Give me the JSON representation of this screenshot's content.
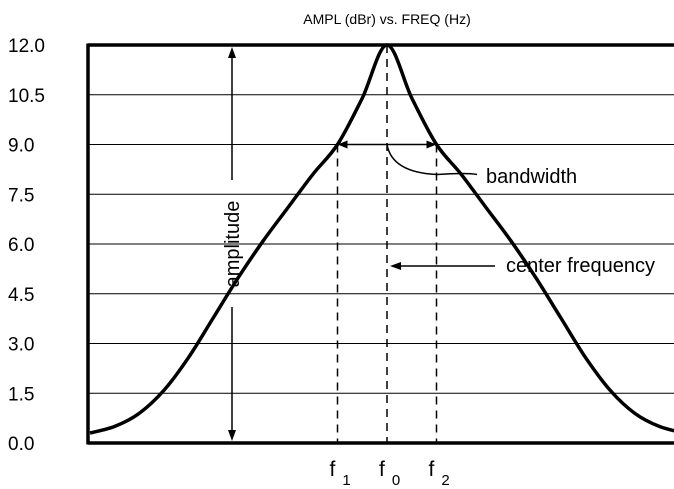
{
  "chart_data": {
    "type": "line",
    "title": "AMPL (dBr) vs. FREQ (Hz)",
    "xlabel": "",
    "ylabel": "",
    "ylim": [
      0,
      12
    ],
    "yticks": [
      "12.0",
      "10.5",
      "9.0",
      "7.5",
      "6.0",
      "4.5",
      "3.0",
      "1.5",
      "0.0"
    ],
    "grid": true,
    "x_markers": [
      {
        "base": "f",
        "sub": "1",
        "x": -1
      },
      {
        "base": "f",
        "sub": "0",
        "x": 0
      },
      {
        "base": "f",
        "sub": "2",
        "x": 1
      }
    ],
    "series": [
      {
        "x": [
          -6,
          -5.5,
          -5,
          -4.5,
          -4,
          -3.5,
          -3,
          -2.5,
          -2,
          -1.5,
          -1,
          -0.5,
          0,
          0.5,
          1,
          1.5,
          2,
          2.5,
          3,
          3.5,
          4,
          4.5,
          5,
          5.5,
          6
        ],
        "y": [
          0.3,
          0.5,
          0.9,
          1.6,
          2.6,
          3.8,
          5.0,
          6.1,
          7.1,
          8.1,
          9.0,
          10.4,
          12.0,
          10.4,
          9.0,
          8.1,
          7.1,
          6.1,
          5.0,
          3.8,
          2.6,
          1.6,
          0.9,
          0.5,
          0.3
        ]
      }
    ],
    "annotations": {
      "amplitude": "amplitude",
      "bandwidth": "bandwidth",
      "center_frequency": "center frequency"
    }
  }
}
